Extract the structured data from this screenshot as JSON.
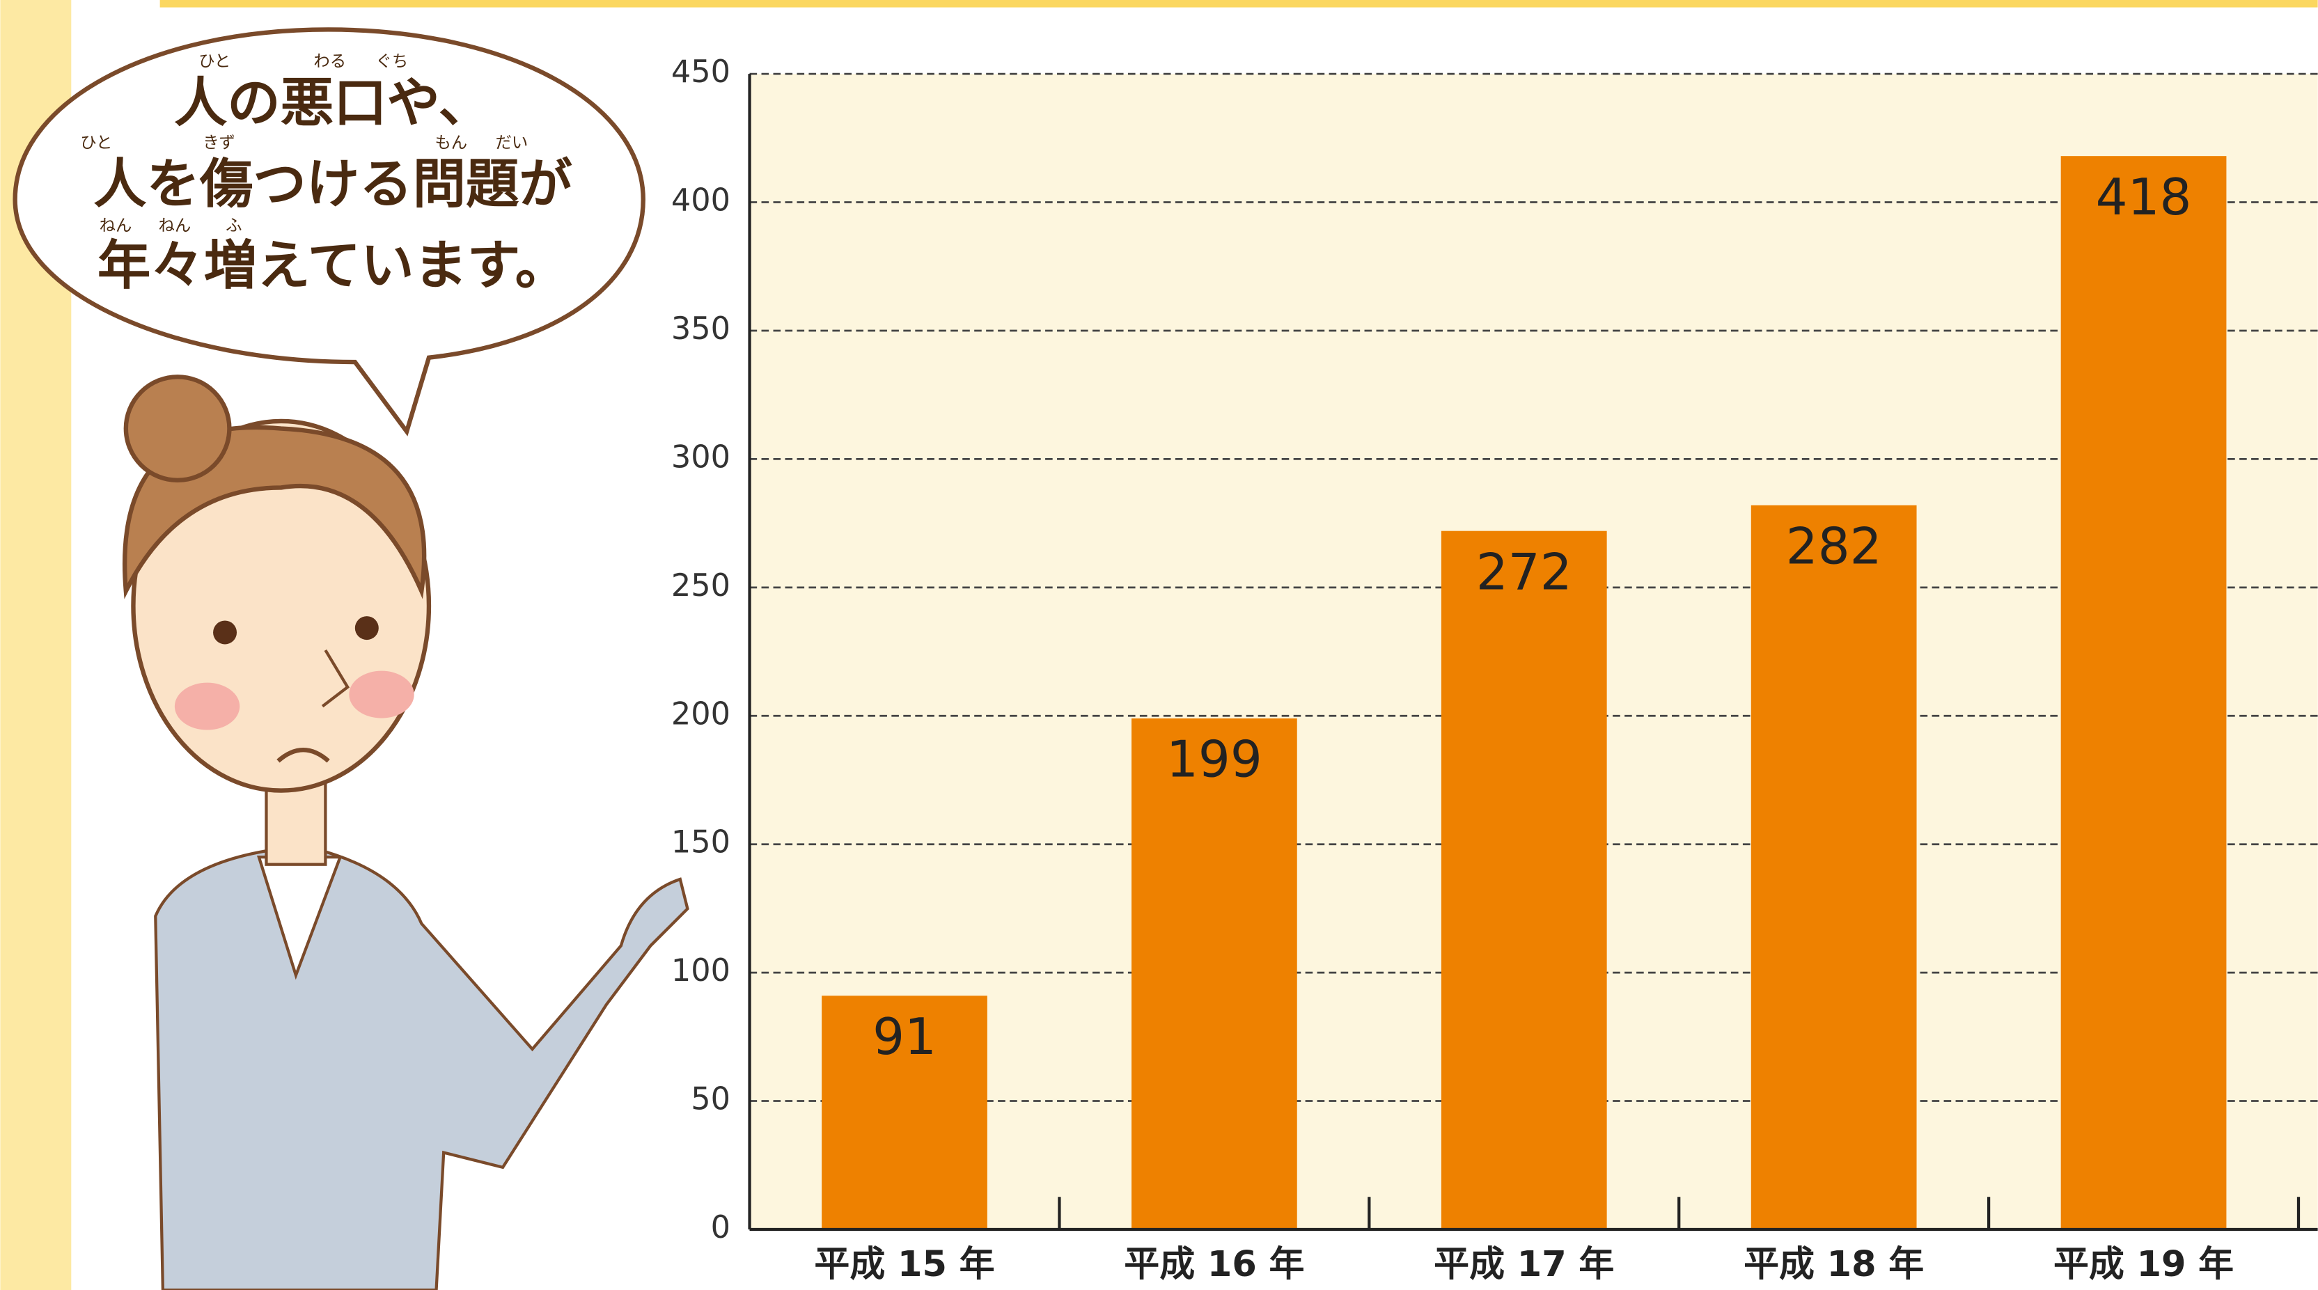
{
  "chart_data": {
    "type": "bar",
    "categories": [
      "平成 15 年",
      "平成 16 年",
      "平成 17 年",
      "平成 18 年",
      "平成 19 年"
    ],
    "values": [
      91,
      199,
      272,
      282,
      418
    ],
    "color": "#ee8100",
    "ylim": [
      0,
      450
    ],
    "yticks": [
      0,
      50,
      100,
      150,
      200,
      250,
      300,
      350,
      400,
      450
    ],
    "grid": true
  },
  "annotation": {
    "lines": [
      "人の悪口や、",
      "人を傷つける問題が",
      "年々増えています。"
    ],
    "ruby": [
      "ひと",
      "わる",
      "ぐち",
      "ひと",
      "きず",
      "もん",
      "だい",
      "ねん",
      "ねん",
      "ふ"
    ]
  }
}
